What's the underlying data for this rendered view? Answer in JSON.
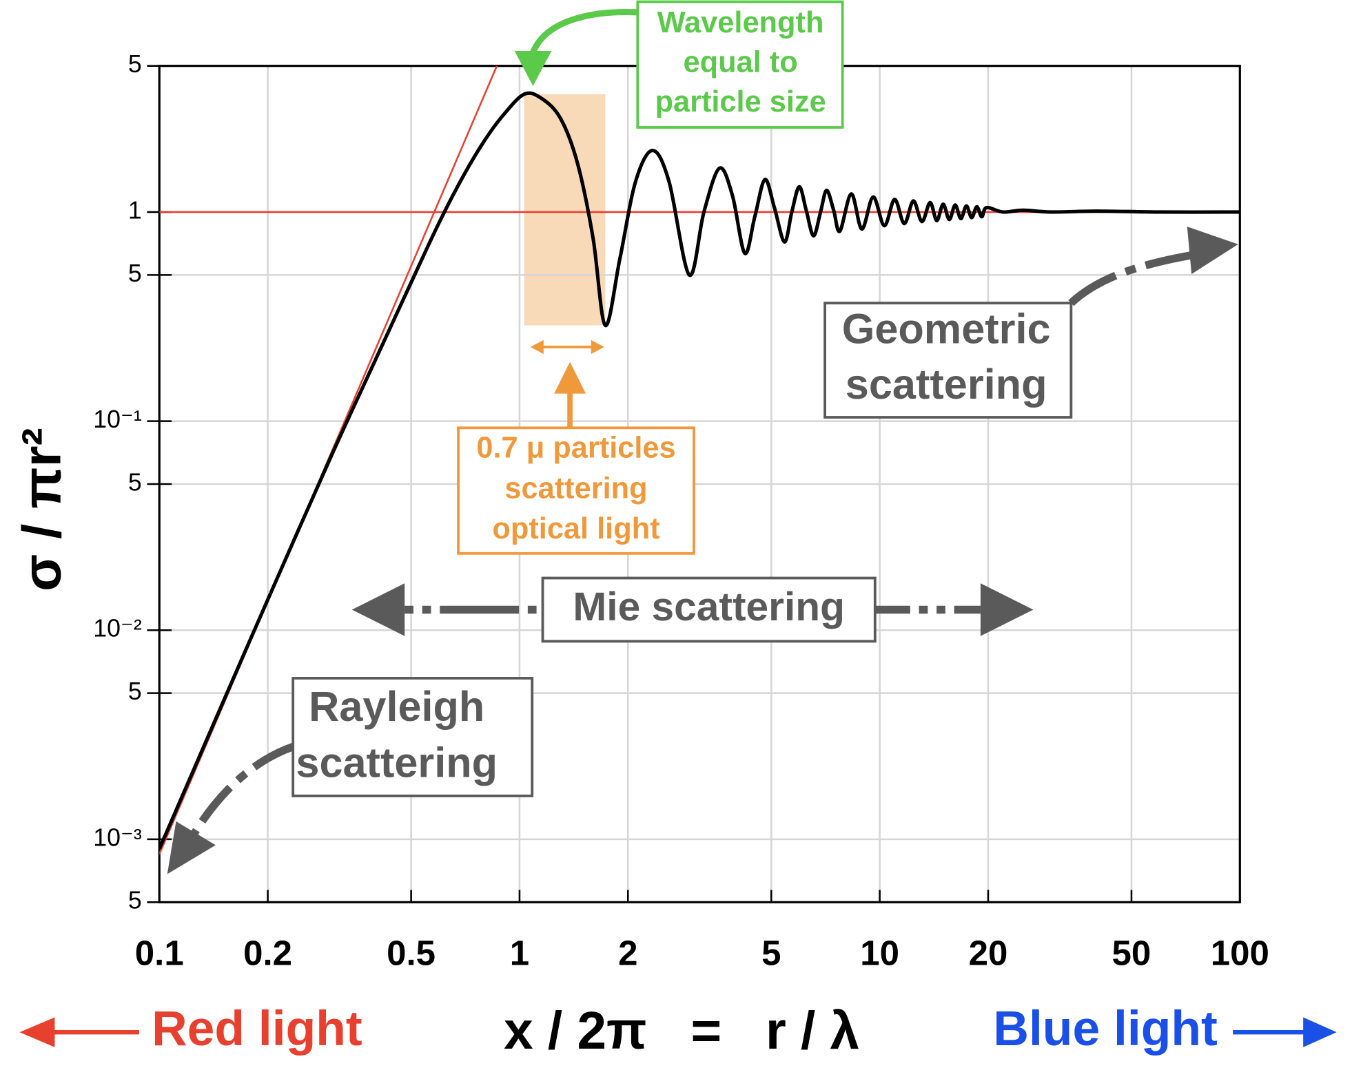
{
  "chart_data": {
    "type": "line",
    "y_label": "σ / πr²",
    "x_label": "x / 2π   =   r / λ",
    "left_label": "Red light",
    "right_label": "Blue light",
    "log_x": true,
    "log_y": true,
    "grid": true,
    "xlim": [
      0.1,
      100
    ],
    "ylim": [
      0.0005,
      5
    ],
    "xticks": [
      0.1,
      0.2,
      0.5,
      1,
      2,
      5,
      10,
      20,
      50,
      100
    ],
    "yticks": [
      5,
      1,
      {
        "value": 0.5,
        "label": "5"
      },
      {
        "value": 0.1,
        "label": "10⁻¹"
      },
      {
        "value": 0.05,
        "label": "5"
      },
      {
        "value": 0.01,
        "label": "10⁻²"
      },
      {
        "value": 0.005,
        "label": "5"
      },
      {
        "value": 0.001,
        "label": "10⁻³"
      },
      {
        "value": 0.0005,
        "label": "5"
      }
    ],
    "highlight": {
      "xrange": [
        1.03,
        1.73
      ],
      "yrange": [
        0.287,
        3.66
      ],
      "color": "#f8d9b8"
    },
    "series": [
      {
        "color": "#e8402e",
        "x": [
          0.1,
          0.865
        ],
        "values": [
          0.00085,
          5
        ]
      },
      {
        "color": "#e8402e",
        "x": [
          0.1,
          100
        ],
        "values": [
          1,
          1
        ]
      },
      {
        "color": "#000000",
        "x": [
          0.1,
          0.15,
          0.2,
          0.3,
          0.4,
          0.5,
          0.6,
          0.7,
          0.8,
          0.9,
          1.03,
          1.15,
          1.3,
          1.45,
          1.6,
          1.73,
          1.9,
          2.1,
          2.34,
          2.6,
          2.96,
          3.25,
          3.59,
          3.9,
          4.22,
          4.5,
          4.8,
          5.1,
          5.44,
          5.7,
          5.98,
          6.25,
          6.55,
          6.85,
          7.12,
          7.45,
          7.75,
          8.34,
          8.92,
          9.59,
          10.3,
          11,
          11.7,
          12.4,
          13.1,
          13.8,
          14.4,
          15,
          15.6,
          16.2,
          16.8,
          17.4,
          18,
          18.6,
          19.2,
          19.8,
          22,
          25,
          30,
          40,
          60,
          100
        ],
        "values": [
          0.0009,
          0.0045,
          0.014,
          0.068,
          0.2,
          0.46,
          0.9,
          1.5,
          2.2,
          2.9,
          3.66,
          3.5,
          2.8,
          1.7,
          0.75,
          0.287,
          0.6,
          1.4,
          1.97,
          1.4,
          0.5,
          1.0,
          1.62,
          1.2,
          0.635,
          0.95,
          1.43,
          1.05,
          0.72,
          1.0,
          1.32,
          1.02,
          0.77,
          1.0,
          1.27,
          1.02,
          0.81,
          1.22,
          0.83,
          1.18,
          0.86,
          1.15,
          0.88,
          1.13,
          0.9,
          1.11,
          0.91,
          1.09,
          0.92,
          1.08,
          0.93,
          1.07,
          0.94,
          1.06,
          0.95,
          1.05,
          1.0,
          1.02,
          1.0,
          1.01,
          1.0,
          1.0
        ]
      }
    ],
    "annotations": {
      "wavelength": [
        "Wavelength",
        "equal to",
        "particle size"
      ],
      "particles": [
        "0.7 μ particles",
        "scattering",
        "optical light"
      ],
      "mie": "Mie scattering",
      "geometric": [
        "Geometric",
        "scattering"
      ],
      "rayleigh": [
        "Rayleigh",
        "scattering"
      ]
    }
  }
}
